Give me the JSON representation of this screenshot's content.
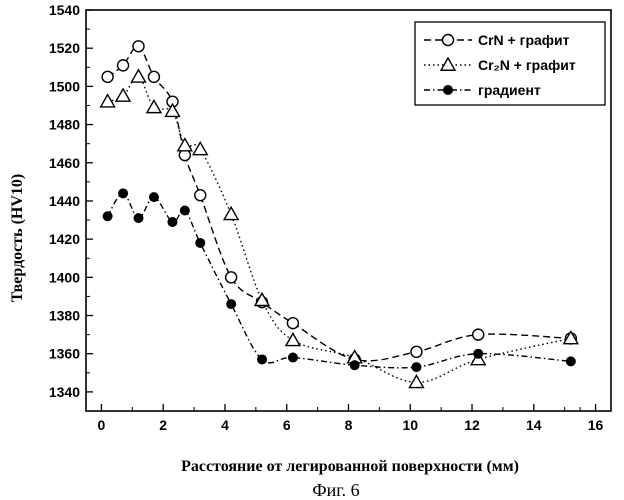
{
  "chart_data": {
    "type": "line",
    "title": "",
    "xlabel": "Расстояние от легированной поверхности (мм)",
    "ylabel": "Твердость (HV10)",
    "xlim": [
      -0.5,
      16.5
    ],
    "ylim": [
      1330,
      1540
    ],
    "xticks": [
      0,
      2,
      4,
      6,
      8,
      10,
      12,
      14,
      16
    ],
    "yticks": [
      1340,
      1360,
      1380,
      1400,
      1420,
      1440,
      1460,
      1480,
      1500,
      1520,
      1540
    ],
    "grid": false,
    "legend_position": "top-right",
    "series": [
      {
        "name": "CrN + графит",
        "marker": "open-circle",
        "line_style": "dashed",
        "x": [
          0.2,
          0.7,
          1.2,
          1.7,
          2.3,
          2.7,
          3.2,
          4.2,
          5.2,
          6.2,
          8.2,
          10.2,
          12.2,
          15.2
        ],
        "y": [
          1505,
          1511,
          1521,
          1505,
          1492,
          1464,
          1443,
          1400,
          1387,
          1376,
          1357,
          1361,
          1370,
          1368
        ]
      },
      {
        "name": "Cr₂N + графит",
        "marker": "open-triangle",
        "line_style": "dotted",
        "x": [
          0.2,
          0.7,
          1.2,
          1.7,
          2.3,
          2.7,
          3.2,
          4.2,
          5.2,
          6.2,
          8.2,
          10.2,
          12.2,
          15.2
        ],
        "y": [
          1492,
          1495,
          1505,
          1489,
          1487,
          1469,
          1467,
          1433,
          1388,
          1367,
          1358,
          1345,
          1357,
          1368
        ]
      },
      {
        "name": "градиент",
        "marker": "filled-circle",
        "line_style": "dash-dot",
        "x": [
          0.2,
          0.7,
          1.2,
          1.7,
          2.3,
          2.7,
          3.2,
          4.2,
          5.2,
          6.2,
          8.2,
          10.2,
          12.2,
          15.2
        ],
        "y": [
          1432,
          1444,
          1431,
          1442,
          1429,
          1435,
          1418,
          1386,
          1357,
          1358,
          1354,
          1353,
          1360,
          1356
        ]
      }
    ],
    "caption": "Фиг. 6"
  }
}
